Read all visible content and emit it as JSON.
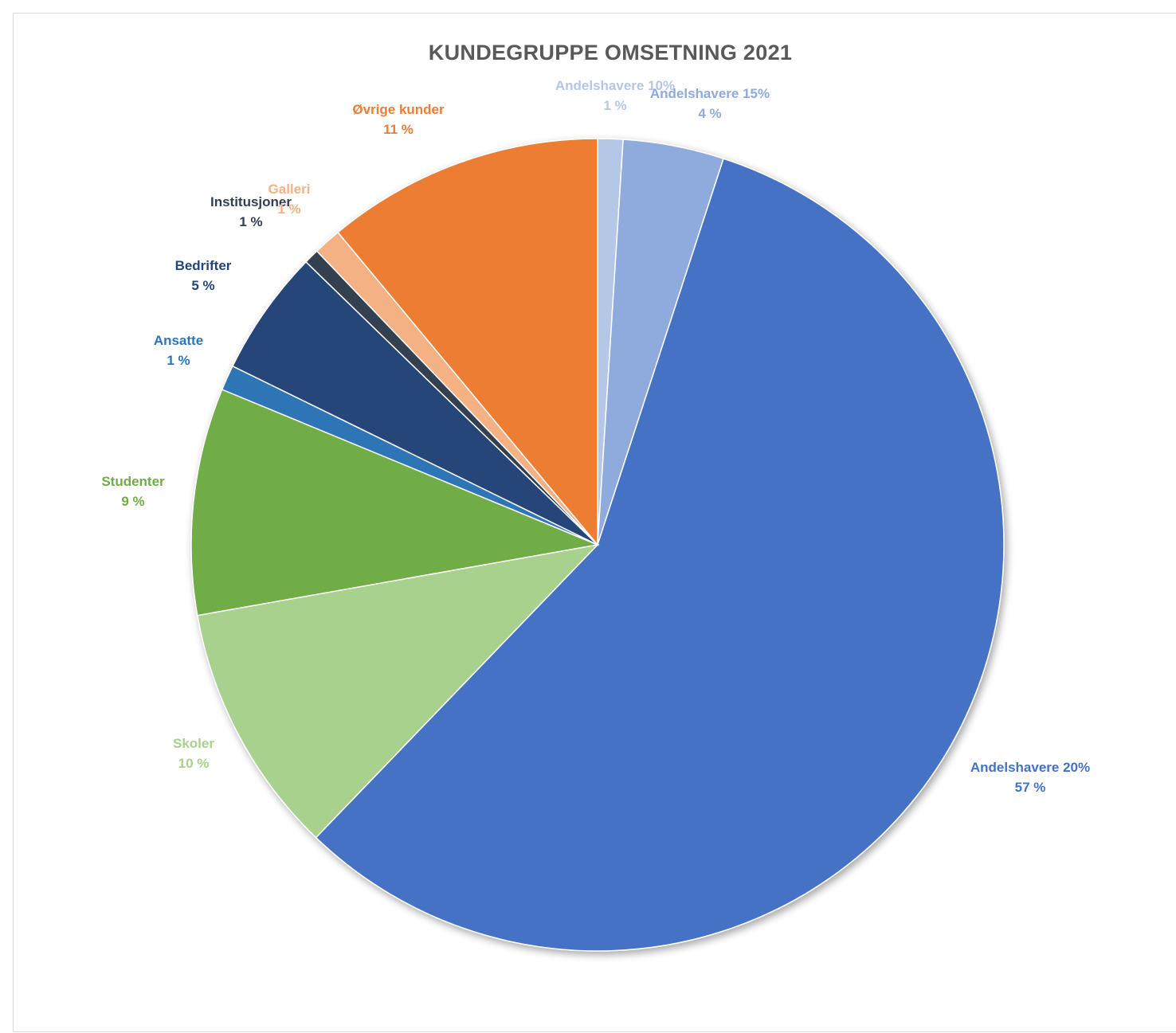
{
  "chart_data": {
    "type": "pie",
    "title": "KUNDEGRUPPE OMSETNING 2021",
    "start_angle_deg": 0,
    "direction": "clockwise",
    "slices": [
      {
        "name": "Andelshavere 10%",
        "value": 1,
        "value_label": "1 %",
        "color": "#b4c7e7"
      },
      {
        "name": "Andelshavere 15%",
        "value": 4,
        "value_label": "4 %",
        "color": "#8faadc"
      },
      {
        "name": "Andelshavere 20%",
        "value": 57,
        "value_label": "57 %",
        "color": "#4472c4"
      },
      {
        "name": "Skoler",
        "value": 10,
        "value_label": "10 %",
        "color": "#a9d18e"
      },
      {
        "name": "Studenter",
        "value": 9,
        "value_label": "9 %",
        "color": "#70ad47"
      },
      {
        "name": "Ansatte",
        "value": 1,
        "value_label": "1 %",
        "color": "#2e75b6"
      },
      {
        "name": "Bedrifter",
        "value": 5,
        "value_label": "5 %",
        "color": "#264478"
      },
      {
        "name": "Institusjoner",
        "value": 0.6,
        "value_label": "1 %",
        "color": "#333f50"
      },
      {
        "name": "Galleri",
        "value": 1.1,
        "value_label": "1 %",
        "color": "#f4b183"
      },
      {
        "name": "Øvrige kunder",
        "value": 11,
        "value_label": "11 %",
        "color": "#ed7d31"
      }
    ]
  }
}
